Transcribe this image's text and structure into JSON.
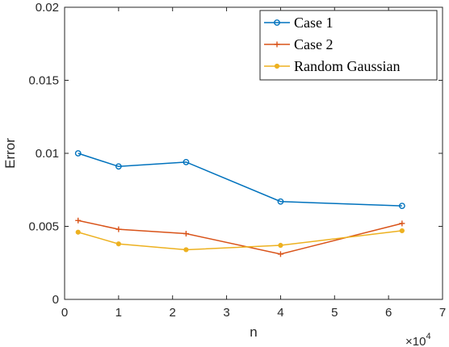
{
  "chart_data": {
    "type": "line",
    "xlabel": "n",
    "ylabel": "Error",
    "x_exponent_label": "×10",
    "x_exponent_power": "4",
    "xlim": [
      0,
      7
    ],
    "ylim": [
      0,
      0.02
    ],
    "x_ticks": [
      "0",
      "1",
      "2",
      "3",
      "4",
      "5",
      "6",
      "7"
    ],
    "y_ticks": [
      "0",
      "0.005",
      "0.01",
      "0.015",
      "0.02"
    ],
    "x_tick_values": [
      0,
      1,
      2,
      3,
      4,
      5,
      6,
      7
    ],
    "y_tick_values": [
      0,
      0.005,
      0.01,
      0.015,
      0.02
    ],
    "x": [
      0.25,
      1,
      2.25,
      4,
      6.25
    ],
    "grid": false,
    "legend_position": "top-right",
    "series": [
      {
        "name": "Case 1",
        "color": "#0072BD",
        "marker": "circle",
        "values": [
          0.01,
          0.0091,
          0.0094,
          0.0067,
          0.0064
        ]
      },
      {
        "name": "Case 2",
        "color": "#D95319",
        "marker": "plus",
        "values": [
          0.0054,
          0.0048,
          0.0045,
          0.0031,
          0.0052
        ]
      },
      {
        "name": "Random Gaussian",
        "color": "#EDB120",
        "marker": "dot",
        "values": [
          0.0046,
          0.0038,
          0.0034,
          0.0037,
          0.0047
        ]
      }
    ]
  }
}
